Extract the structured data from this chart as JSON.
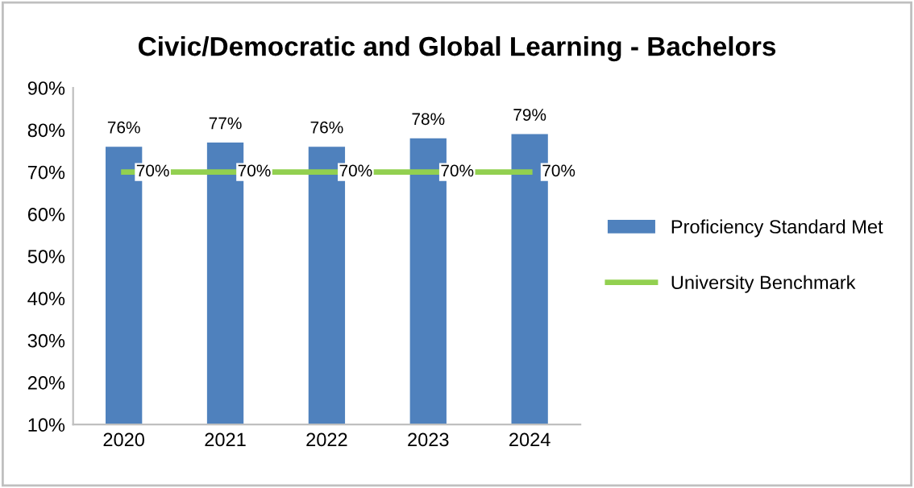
{
  "chart_data": {
    "type": "bar",
    "title": "Civic/Democratic and Global Learning - Bachelors",
    "categories": [
      "2020",
      "2021",
      "2022",
      "2023",
      "2024"
    ],
    "series": [
      {
        "name": "Proficiency Standard Met",
        "color": "#4f81bd",
        "values": [
          76,
          77,
          76,
          78,
          79
        ],
        "value_labels": [
          "76%",
          "77%",
          "76%",
          "78%",
          "79%"
        ]
      },
      {
        "name": "University Benchmark",
        "type": "line",
        "color": "#92d050",
        "values": [
          70,
          70,
          70,
          70,
          70
        ],
        "value_labels": [
          "70%",
          "70%",
          "70%",
          "70%",
          "70%"
        ]
      }
    ],
    "ylim": [
      10,
      90
    ],
    "yticks": [
      {
        "value": 10,
        "label": "10%"
      },
      {
        "value": 20,
        "label": "20%"
      },
      {
        "value": 30,
        "label": "30%"
      },
      {
        "value": 40,
        "label": "40%"
      },
      {
        "value": 50,
        "label": "50%"
      },
      {
        "value": 60,
        "label": "60%"
      },
      {
        "value": 70,
        "label": "70%"
      },
      {
        "value": 80,
        "label": "80%"
      },
      {
        "value": 90,
        "label": "90%"
      }
    ],
    "grid": false,
    "legend": "right",
    "marker": "none"
  }
}
